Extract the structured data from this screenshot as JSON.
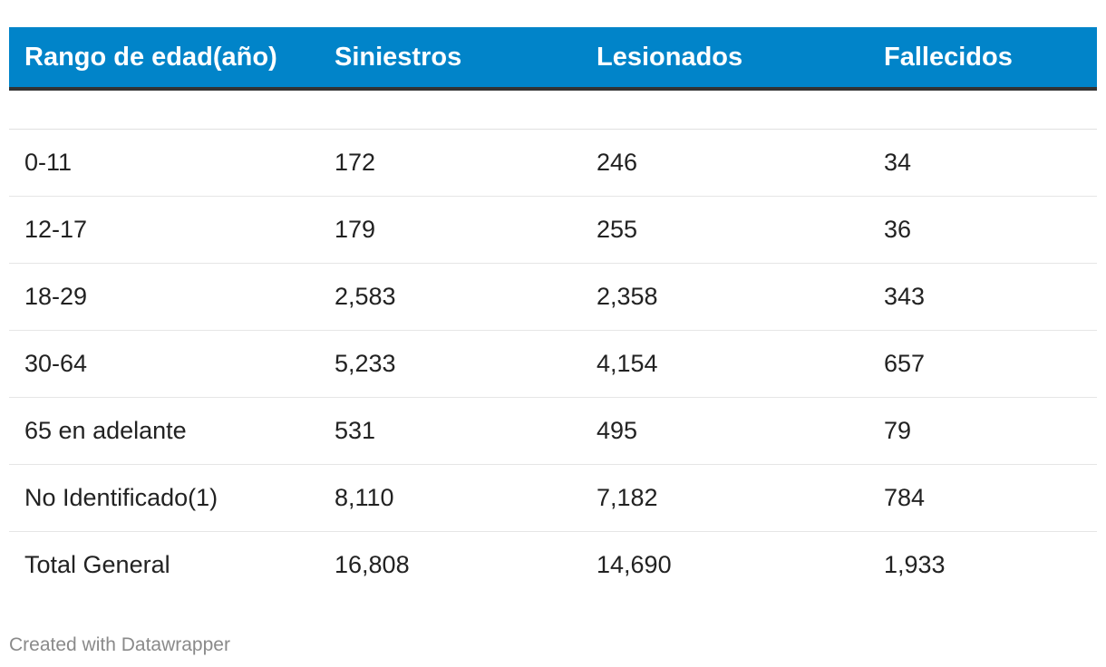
{
  "chart_data": {
    "type": "table",
    "columns": [
      "Rango de edad(año)",
      "Siniestros",
      "Lesionados",
      "Fallecidos"
    ],
    "rows": [
      [
        "0-11",
        "172",
        "246",
        "34"
      ],
      [
        "12-17",
        "179",
        "255",
        "36"
      ],
      [
        "18-29",
        "2,583",
        "2,358",
        "343"
      ],
      [
        "30-64",
        "5,233",
        "4,154",
        "657"
      ],
      [
        "65 en adelante",
        "531",
        "495",
        "79"
      ],
      [
        "No Identificado(1)",
        "8,110",
        "7,182",
        "784"
      ],
      [
        "Total General",
        "16,808",
        "14,690",
        "1,933"
      ]
    ],
    "header_color": "#0184c9"
  },
  "footer": {
    "credit": "Created with Datawrapper"
  }
}
